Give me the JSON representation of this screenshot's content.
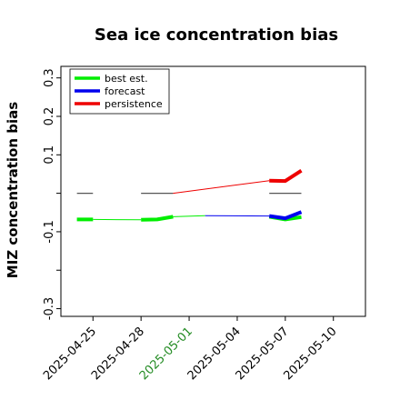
{
  "chart_data": {
    "type": "line",
    "title": "Sea ice concentration bias",
    "xlabel": "",
    "ylabel": "MIZ concentration bias",
    "xlim": [
      "2025-04-23",
      "2025-05-12"
    ],
    "ylim": [
      -0.32,
      0.33
    ],
    "x_ticks": [
      "2025-04-25",
      "2025-04-28",
      "2025-05-01",
      "2025-05-04",
      "2025-05-07",
      "2025-05-10"
    ],
    "x_tick_colors": [
      "#000000",
      "#000000",
      "#228b22",
      "#000000",
      "#000000",
      "#000000"
    ],
    "y_ticks": [
      -0.3,
      -0.2,
      -0.1,
      0.0,
      0.1,
      0.2,
      0.3
    ],
    "y_tick_labels": [
      "-0.3",
      "",
      "-0.1",
      "",
      "0.1",
      "0.2",
      "0.3"
    ],
    "legend": {
      "placement": "top-left",
      "entries": [
        "best est.",
        "forecast",
        "persistence"
      ]
    },
    "grid": false,
    "series": [
      {
        "name": "best est.",
        "color": "#00ee00",
        "segments": [
          {
            "x": [
              "2025-04-24",
              "2025-04-25"
            ],
            "y": [
              -0.068,
              -0.068
            ],
            "thick": true
          },
          {
            "x": [
              "2025-04-25",
              "2025-04-28"
            ],
            "y": [
              -0.068,
              -0.069
            ],
            "thick": false
          },
          {
            "x": [
              "2025-04-28",
              "2025-04-29",
              "2025-04-30"
            ],
            "y": [
              -0.069,
              -0.068,
              -0.061
            ],
            "thick": true
          },
          {
            "x": [
              "2025-04-30",
              "2025-05-02"
            ],
            "y": [
              -0.061,
              -0.058
            ],
            "thick": false
          },
          {
            "x": [
              "2025-05-06",
              "2025-05-07",
              "2025-05-08"
            ],
            "y": [
              -0.061,
              -0.068,
              -0.062
            ],
            "thick": true
          }
        ]
      },
      {
        "name": "forecast",
        "color": "#0000ee",
        "segments": [
          {
            "x": [
              "2025-05-02",
              "2025-05-06"
            ],
            "y": [
              -0.058,
              -0.059
            ],
            "thick": false
          },
          {
            "x": [
              "2025-05-06",
              "2025-05-07",
              "2025-05-08"
            ],
            "y": [
              -0.059,
              -0.065,
              -0.049
            ],
            "thick": true
          }
        ]
      },
      {
        "name": "persistence",
        "color": "#ee0000",
        "segments": [
          {
            "x": [
              "2025-04-30",
              "2025-05-06"
            ],
            "y": [
              0.0,
              0.033
            ],
            "thick": false
          },
          {
            "x": [
              "2025-05-06",
              "2025-05-07",
              "2025-05-08"
            ],
            "y": [
              0.033,
              0.032,
              0.059
            ],
            "thick": true
          }
        ]
      }
    ],
    "reference_segments": [
      {
        "color": "#555555",
        "x": [
          "2025-04-24",
          "2025-04-25"
        ],
        "y": [
          0.0,
          0.0
        ]
      },
      {
        "color": "#555555",
        "x": [
          "2025-04-28",
          "2025-04-30"
        ],
        "y": [
          0.0,
          0.0
        ]
      },
      {
        "color": "#555555",
        "x": [
          "2025-05-06",
          "2025-05-08"
        ],
        "y": [
          0.0,
          0.0
        ]
      }
    ]
  }
}
